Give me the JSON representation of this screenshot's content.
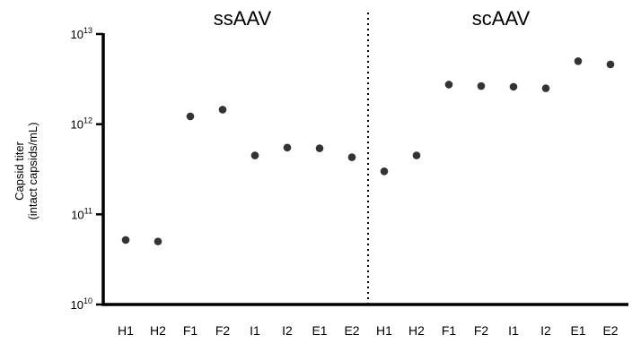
{
  "chart_data": {
    "type": "scatter",
    "title": "",
    "ylabel": [
      "Capsid titer",
      "(intact capsids/mL)"
    ],
    "xlabel": "",
    "yscale": "log",
    "ylim": [
      10000000000.0,
      10000000000000.0
    ],
    "yticks": [
      {
        "base": "10",
        "exp": "10",
        "value": 10000000000.0
      },
      {
        "base": "10",
        "exp": "11",
        "value": 100000000000.0
      },
      {
        "base": "10",
        "exp": "12",
        "value": 1000000000000.0
      },
      {
        "base": "10",
        "exp": "13",
        "value": 10000000000000.0
      }
    ],
    "groups": [
      {
        "label": "ssAAV",
        "categories": [
          "H1",
          "H2",
          "F1",
          "F2",
          "I1",
          "I2",
          "E1",
          "E2"
        ]
      },
      {
        "label": "scAAV",
        "categories": [
          "H1",
          "H2",
          "F1",
          "F2",
          "I1",
          "I2",
          "E1",
          "E2"
        ]
      }
    ],
    "values": [
      52000000000.0,
      50000000000.0,
      1220000000000.0,
      1450000000000.0,
      450000000000.0,
      550000000000.0,
      540000000000.0,
      430000000000.0,
      300000000000.0,
      450000000000.0,
      2750000000000.0,
      2650000000000.0,
      2600000000000.0,
      2500000000000.0,
      5000000000000.0,
      4600000000000.0
    ],
    "grid": false,
    "divider": "dotted vertical line between groups",
    "point_color": "#333333"
  }
}
